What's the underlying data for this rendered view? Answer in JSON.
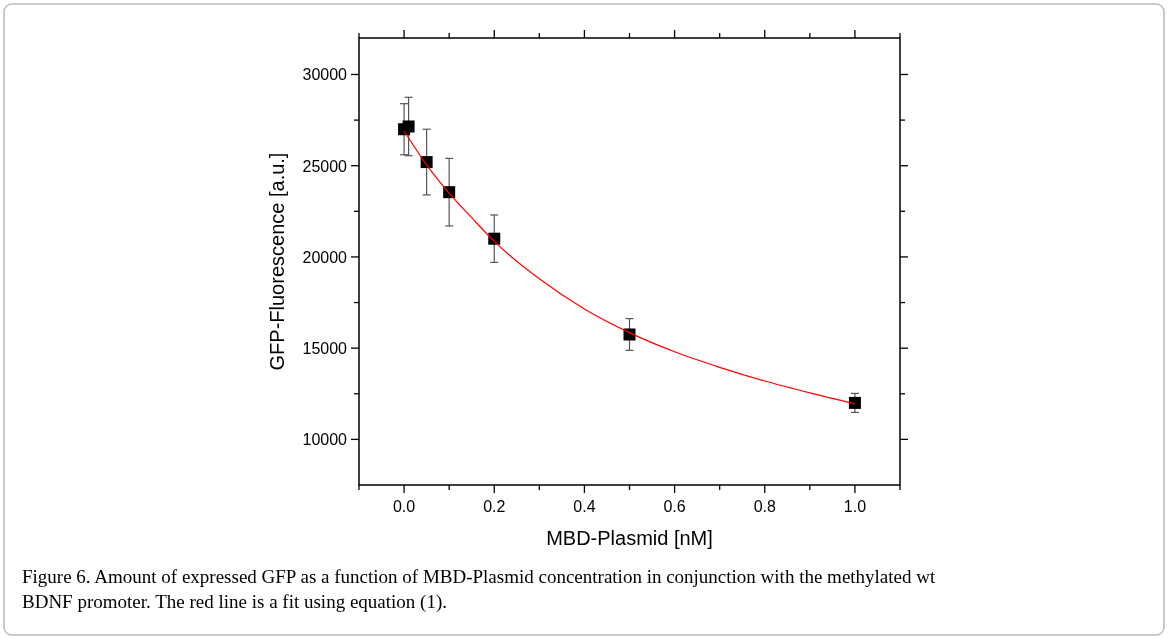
{
  "chart_data": {
    "type": "scatter",
    "xlabel": "MBD-Plasmid [nM]",
    "ylabel": "GFP-Fluorescence [a.u.]",
    "xlim": [
      -0.1,
      1.1
    ],
    "xticks": [
      {
        "value": -0.1,
        "label": null
      },
      {
        "value": 0,
        "label": "0.0"
      },
      {
        "value": 0.1,
        "label": null
      },
      {
        "value": 0.2,
        "label": "0.2"
      },
      {
        "value": 0.3,
        "label": null
      },
      {
        "value": 0.4,
        "label": "0.4"
      },
      {
        "value": 0.5,
        "label": null
      },
      {
        "value": 0.6,
        "label": "0.6"
      },
      {
        "value": 0.7,
        "label": null
      },
      {
        "value": 0.8,
        "label": "0.8"
      },
      {
        "value": 0.9,
        "label": null
      },
      {
        "value": 1,
        "label": "1.0"
      },
      {
        "value": 1.1,
        "label": null
      }
    ],
    "ylim": [
      7500,
      32000
    ],
    "yticks": [
      10000,
      {
        "value": 12500,
        "label": null
      },
      15000,
      {
        "value": 17500,
        "label": null
      },
      20000,
      {
        "value": 22500,
        "label": null
      },
      25000,
      {
        "value": 27500,
        "label": null
      },
      30000
    ],
    "grid": false,
    "marker": "square",
    "series": [
      {
        "color": "#000000",
        "x": [
          0,
          0.01,
          0.05,
          0.1,
          0.2,
          0.5,
          1.0
        ],
        "values": [
          27000,
          27150,
          25200,
          23550,
          21000,
          15750,
          12000
        ],
        "errors": [
          1400,
          1600,
          1800,
          1850,
          1300,
          870,
          520
        ]
      },
      {
        "type": "line",
        "color": "#ff0000",
        "marker": "none",
        "line_style": "solid",
        "x": [
          0,
          0.05,
          0.1,
          0.15,
          0.2,
          0.3,
          0.4,
          0.5,
          0.6,
          0.7,
          0.8,
          0.9,
          1.0
        ],
        "values": [
          26900,
          25050,
          23500,
          22150,
          20850,
          18800,
          17150,
          15850,
          14800,
          13950,
          13200,
          12550,
          11950
        ]
      }
    ],
    "annotations": [
      "Figure 6. Amount of expressed GFP as a function of MBD-Plasmid concentration in conjunction with the methylated wt BDNF promoter. The red line is a fit using equation (1)."
    ]
  }
}
